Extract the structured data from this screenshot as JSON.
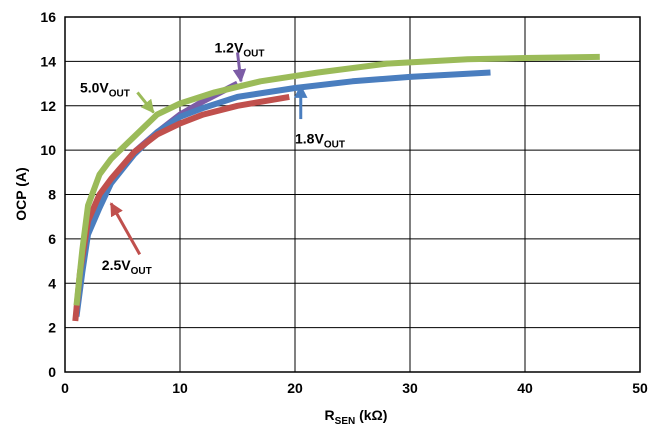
{
  "chart_data": {
    "type": "line",
    "title": "",
    "xlabel": {
      "main": "R",
      "sub": "SEN",
      "suffix": " (kΩ)"
    },
    "ylabel": "OCP (A)",
    "xlim": [
      0,
      50
    ],
    "ylim": [
      0,
      16
    ],
    "xticks": [
      "0",
      "10",
      "20",
      "30",
      "40",
      "50"
    ],
    "yticks": [
      "0",
      "2",
      "4",
      "6",
      "8",
      "10",
      "12",
      "14",
      "16"
    ],
    "grid": true,
    "series": [
      {
        "name": "1.2V",
        "name_sub": "OUT",
        "color": "#7c5ca6",
        "x": [
          1.0,
          1.5,
          2.0,
          3.0,
          4.0,
          6.0,
          8.0,
          10.0,
          12.0,
          15.0
        ],
        "y": [
          2.8,
          5.0,
          6.7,
          7.8,
          8.6,
          9.9,
          10.8,
          11.6,
          12.2,
          13.0
        ]
      },
      {
        "name": "1.8V",
        "name_sub": "OUT",
        "color": "#4a7ebf",
        "x": [
          1.0,
          1.5,
          2.0,
          3.0,
          4.0,
          6.0,
          8.0,
          10.0,
          12.0,
          15.0,
          20.0,
          25.0,
          30.0,
          37.0
        ],
        "y": [
          2.5,
          4.5,
          6.2,
          7.4,
          8.5,
          9.8,
          10.8,
          11.5,
          11.9,
          12.4,
          12.8,
          13.1,
          13.3,
          13.5
        ]
      },
      {
        "name": "2.5V",
        "name_sub": "OUT",
        "color": "#c0504d",
        "x": [
          0.9,
          1.3,
          2.0,
          3.0,
          4.0,
          6.0,
          8.0,
          10.0,
          12.0,
          15.0,
          19.5
        ],
        "y": [
          2.3,
          4.5,
          6.8,
          8.0,
          8.7,
          9.9,
          10.7,
          11.2,
          11.6,
          12.0,
          12.4
        ]
      },
      {
        "name": "5.0V",
        "name_sub": "OUT",
        "color": "#9bbb59",
        "x": [
          1.0,
          1.5,
          2.0,
          3.0,
          4.0,
          6.0,
          8.0,
          10.0,
          13.0,
          17.0,
          22.0,
          28.0,
          35.0,
          40.0,
          46.5
        ],
        "y": [
          3.0,
          5.5,
          7.5,
          8.9,
          9.6,
          10.6,
          11.6,
          12.1,
          12.6,
          13.1,
          13.5,
          13.9,
          14.1,
          14.15,
          14.2
        ]
      }
    ]
  }
}
